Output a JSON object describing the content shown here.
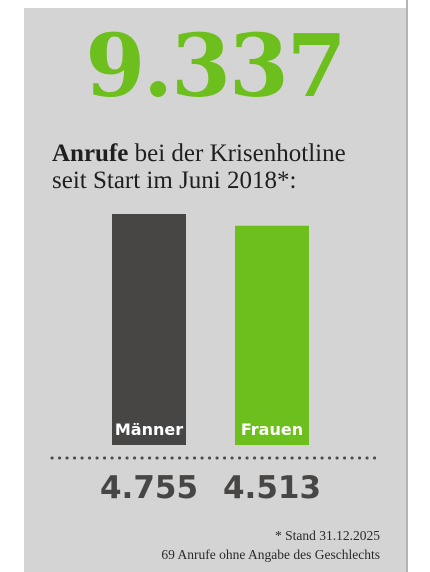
{
  "total": "9.337",
  "headline": {
    "bold": "Anrufe",
    "line1_rest": " bei der Krisenhotline",
    "line2": "seit Start im Juni 2018*:"
  },
  "chart_data": {
    "type": "bar",
    "categories": [
      "Männer",
      "Frauen"
    ],
    "values": [
      4755,
      4513
    ],
    "value_labels": [
      "4.755",
      "4.513"
    ],
    "colors": [
      "#474645",
      "#6cbf1c"
    ],
    "title": "",
    "xlabel": "",
    "ylabel": ""
  },
  "footnote": {
    "line1": "* Stand 31.12.2025",
    "line2": "69 Anrufe ohne Angabe des Geschlechts"
  },
  "colors": {
    "accent": "#6cbf1c",
    "dark": "#474645",
    "background": "#d4d4d4"
  }
}
